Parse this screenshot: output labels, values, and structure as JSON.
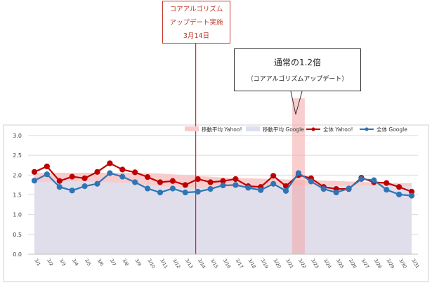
{
  "annotations": {
    "update": {
      "line1": "コアアルゴリズム",
      "line2": "アップデート実施",
      "line3": "3月14日"
    },
    "ratio": {
      "title": "通常の1.2倍",
      "subtitle": "（コアアルゴリズムアップデート）"
    }
  },
  "chart_data": {
    "type": "line",
    "categories": [
      "3/1",
      "3/2",
      "3/3",
      "3/4",
      "3/5",
      "3/6",
      "3/7",
      "3/8",
      "3/9",
      "3/10",
      "3/11",
      "3/12",
      "3/13",
      "3/14",
      "3/15",
      "3/16",
      "3/17",
      "3/18",
      "3/19",
      "3/20",
      "3/21",
      "3/22",
      "3/23",
      "3/24",
      "3/25",
      "3/26",
      "3/27",
      "3/28",
      "3/29",
      "3/30",
      "3/31"
    ],
    "ylim": [
      0,
      3.0
    ],
    "yticks": [
      "0.0",
      "0.5",
      "1.0",
      "1.5",
      "2.0",
      "2.5",
      "3.0"
    ],
    "legend_position": "top-right",
    "series": [
      {
        "name": "移動平均 Yahoo!",
        "kind": "area",
        "color": "#f8cccc",
        "values": [
          2.05,
          2.06,
          2.06,
          2.06,
          2.06,
          2.06,
          2.06,
          2.06,
          2.06,
          2.05,
          2.04,
          2.02,
          2.0,
          1.98,
          1.96,
          1.94,
          1.93,
          1.92,
          1.91,
          1.9,
          1.89,
          1.88,
          1.87,
          1.86,
          1.85,
          1.84,
          1.83,
          1.82,
          1.81,
          1.8,
          1.8
        ]
      },
      {
        "name": "移動平均 Google",
        "kind": "area",
        "color": "#dde0f0",
        "values": [
          1.82,
          1.83,
          1.84,
          1.84,
          1.84,
          1.83,
          1.82,
          1.81,
          1.78,
          1.75,
          1.72,
          1.7,
          1.69,
          1.68,
          1.68,
          1.69,
          1.7,
          1.7,
          1.71,
          1.72,
          1.73,
          1.74,
          1.74,
          1.74,
          1.74,
          1.74,
          1.74,
          1.73,
          1.73,
          1.72,
          1.72
        ]
      },
      {
        "name": "全体 Yahoo!",
        "kind": "line",
        "color": "#c00000",
        "values": [
          2.08,
          2.22,
          1.85,
          1.96,
          1.92,
          2.08,
          2.3,
          2.14,
          2.07,
          1.95,
          1.82,
          1.85,
          1.75,
          1.9,
          1.82,
          1.85,
          1.9,
          1.72,
          1.7,
          1.98,
          1.72,
          2.0,
          1.92,
          1.7,
          1.65,
          1.65,
          1.93,
          1.82,
          1.8,
          1.7,
          1.58
        ]
      },
      {
        "name": "全体 Google",
        "kind": "line",
        "color": "#2e75b6",
        "values": [
          1.86,
          2.02,
          1.7,
          1.61,
          1.72,
          1.78,
          2.05,
          1.96,
          1.82,
          1.66,
          1.56,
          1.66,
          1.56,
          1.58,
          1.65,
          1.74,
          1.75,
          1.68,
          1.62,
          1.78,
          1.6,
          2.05,
          1.84,
          1.65,
          1.56,
          1.66,
          1.9,
          1.87,
          1.63,
          1.51,
          1.48
        ]
      }
    ],
    "markers": {
      "update_line": "3/14",
      "highlight_band": "3/22"
    }
  }
}
